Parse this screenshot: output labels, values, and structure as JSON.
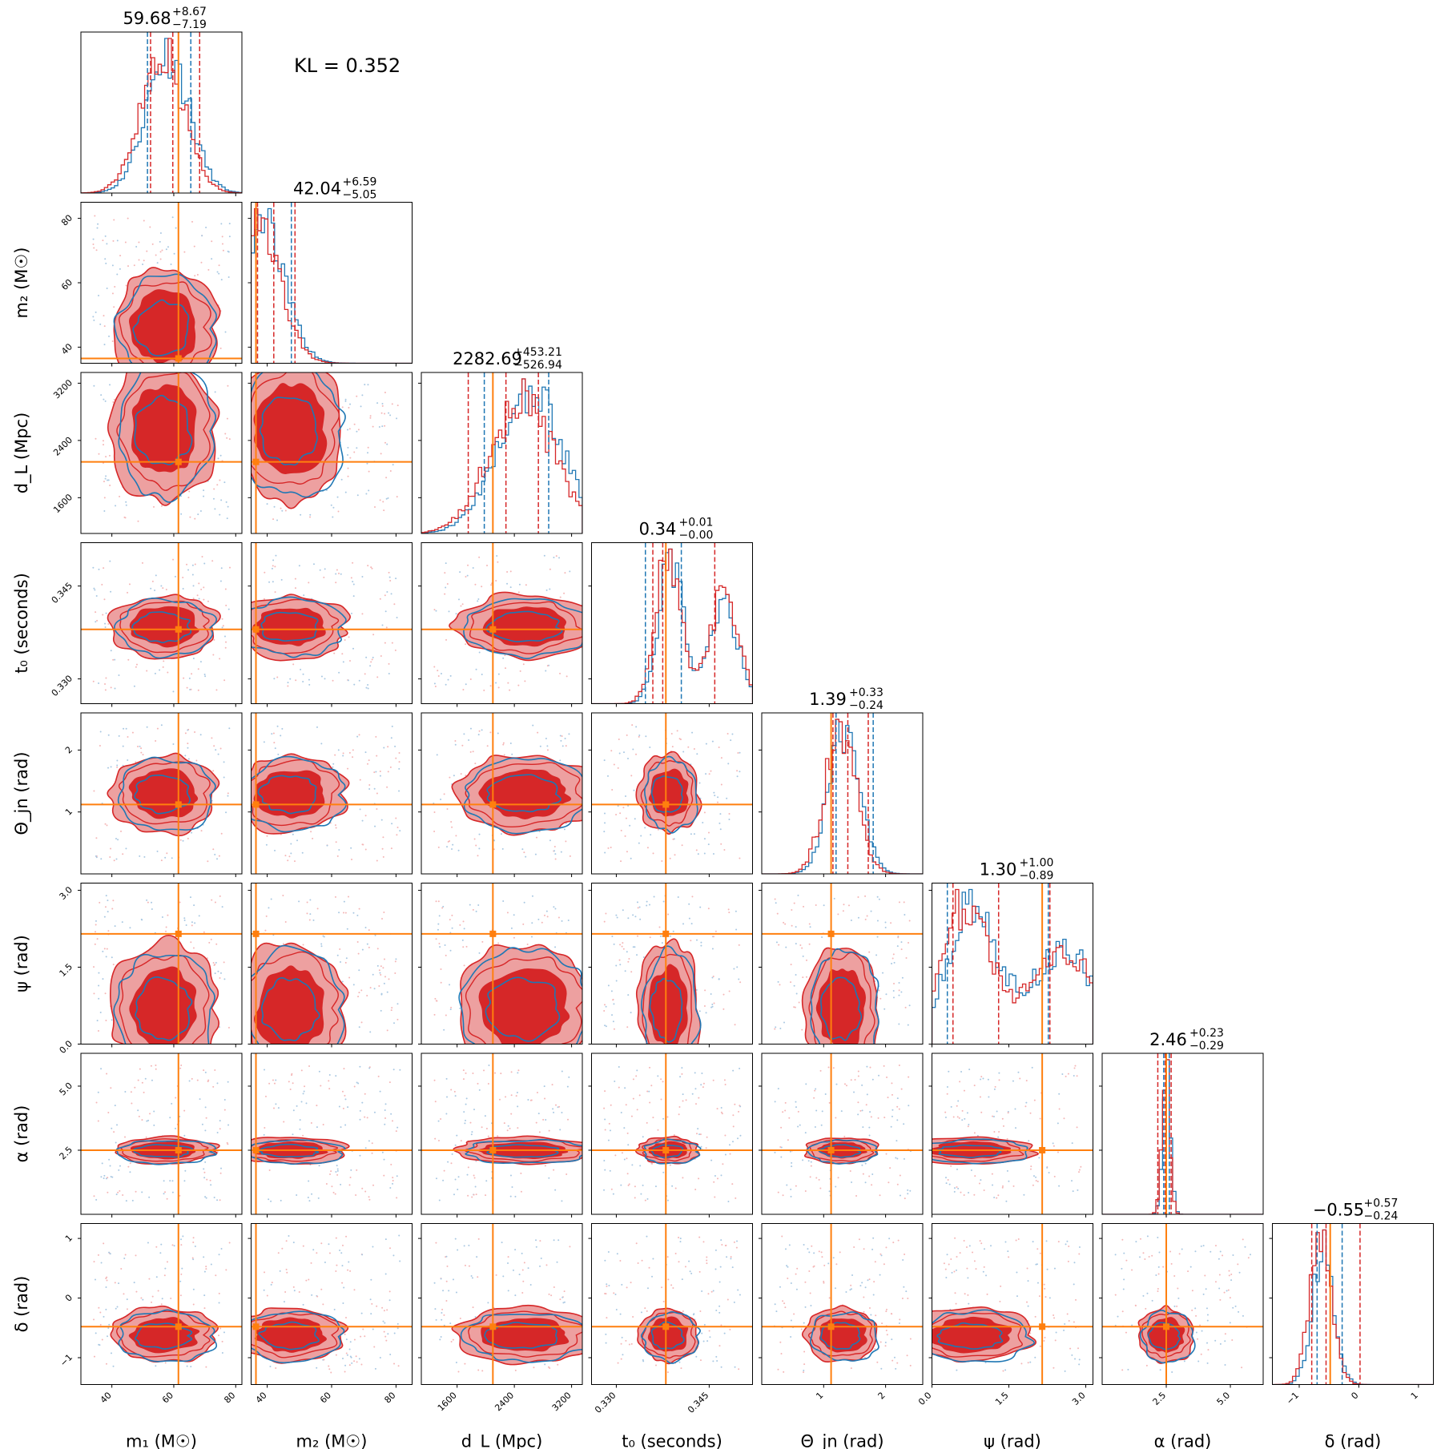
{
  "annotation": "KL = 0.352",
  "colors": {
    "red": "#d62728",
    "red_light": "#eda0a0",
    "blue": "#1f77b4",
    "truth": "#ff7f0e"
  },
  "chart_data": {
    "type": "corner",
    "series": [
      {
        "name": "",
        "color": "#d62728"
      },
      {
        "name": "",
        "color": "#1f77b4"
      }
    ],
    "parameters": [
      {
        "key": "m1",
        "label": "m₁ (M☉)",
        "range": [
          30,
          82
        ],
        "ticks": [
          40,
          60,
          80
        ],
        "truth": 61.5,
        "red_quantiles": [
          52.5,
          59.68,
          68.35
        ],
        "blue_quantiles": [
          51.5,
          65.5
        ],
        "title": {
          "value": "59.68",
          "plus": "+8.67",
          "minus": "−7.19"
        },
        "peak": 57,
        "width": 7
      },
      {
        "key": "m2",
        "label": "m₂ (M☉)",
        "range": [
          35,
          85
        ],
        "ticks": [
          40,
          60,
          80
        ],
        "truth": 36.5,
        "red_quantiles": [
          36.99,
          42.04,
          48.63
        ],
        "blue_quantiles": [
          36.5,
          47.5
        ],
        "title": {
          "value": "42.04",
          "plus": "+6.59",
          "minus": "−5.05"
        },
        "peak": 37,
        "width": 7
      },
      {
        "key": "dL",
        "label": "d_L (Mpc)",
        "range": [
          1100,
          3350
        ],
        "ticks": [
          1600,
          2400,
          3200
        ],
        "truth": 2100,
        "red_quantiles": [
          1755.75,
          2282.69,
          2735.9
        ],
        "blue_quantiles": [
          1980,
          2880
        ],
        "title": {
          "value": "2282.69",
          "plus": "+453.21",
          "minus": "−526.94"
        },
        "peak": 2550,
        "width": 450
      },
      {
        "key": "t0",
        "label": "t₀ (seconds)",
        "range": [
          0.326,
          0.352
        ],
        "ticks": [
          0.33,
          0.345
        ],
        "tick_labels": [
          "0.330",
          "0.345"
        ],
        "truth": 0.338,
        "red_quantiles": [
          0.3359,
          0.3375,
          0.3459
        ],
        "blue_quantiles": [
          0.3347,
          0.3405
        ],
        "title": {
          "value": "0.34",
          "plus": "+0.01",
          "minus": "−0.00"
        },
        "peak": 0.3385,
        "width": 0.002
      },
      {
        "key": "theta_jn",
        "label": "Θ_jn (rad)",
        "range": [
          0,
          2.6
        ],
        "ticks": [
          1,
          2
        ],
        "truth": 1.12,
        "red_quantiles": [
          1.15,
          1.39,
          1.72
        ],
        "blue_quantiles": [
          1.2,
          1.8
        ],
        "title": {
          "value": "1.39",
          "plus": "+0.33",
          "minus": "−0.24"
        },
        "peak": 1.3,
        "width": 0.25
      },
      {
        "key": "psi",
        "label": "ψ (rad)",
        "range": [
          0,
          3.14
        ],
        "ticks": [
          0,
          1.5,
          3
        ],
        "tick_labels": [
          "0.0",
          "1.5",
          "3.0"
        ],
        "truth": 2.15,
        "red_quantiles": [
          0.41,
          1.3,
          2.3
        ],
        "blue_quantiles": [
          0.3,
          2.27
        ],
        "title": {
          "value": "1.30",
          "plus": "+1.00",
          "minus": "−0.89"
        },
        "peak": 0.7,
        "width": 0.5
      },
      {
        "key": "alpha",
        "label": "α (rad)",
        "range": [
          0,
          6.28
        ],
        "ticks": [
          2.5,
          5
        ],
        "tick_labels": [
          "2.5",
          "5.0"
        ],
        "truth": 2.5,
        "red_quantiles": [
          2.17,
          2.46,
          2.69
        ],
        "blue_quantiles": [
          2.4,
          2.62
        ],
        "title": {
          "value": "2.46",
          "plus": "+0.23",
          "minus": "−0.29"
        },
        "peak": 2.5,
        "width": 0.15
      },
      {
        "key": "delta",
        "label": "δ (rad)",
        "range": [
          -1.45,
          1.25
        ],
        "ticks": [
          -1,
          0,
          1
        ],
        "tick_labels": [
          "−1",
          "0",
          "1"
        ],
        "truth": -0.48,
        "red_quantiles": [
          -0.79,
          -0.55,
          0.02
        ],
        "blue_quantiles": [
          -0.7,
          -0.28
        ],
        "title": {
          "value": "−0.55",
          "plus": "+0.57",
          "minus": "−0.24"
        },
        "peak": -0.62,
        "width": 0.18
      }
    ]
  }
}
